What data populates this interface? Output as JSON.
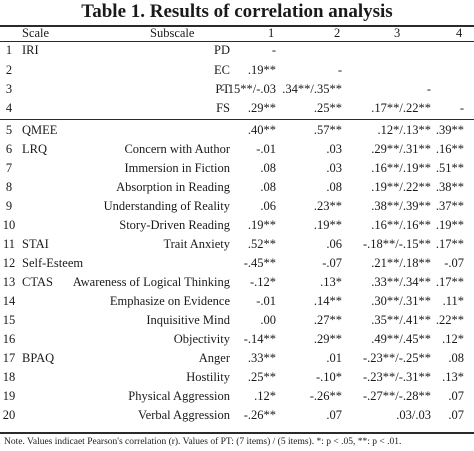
{
  "title": "Table 1. Results of correlation analysis",
  "headers": [
    "",
    "Scale",
    "Subscale",
    "1",
    "2",
    "3",
    "4"
  ],
  "rows": [
    [
      "1",
      "IRI",
      "PD",
      "-",
      "",
      "",
      ""
    ],
    [
      "2",
      "",
      "EC",
      ".19**",
      "-",
      "",
      ""
    ],
    [
      "3",
      "",
      "PT",
      "-.15**/-.03",
      ".34**/.35**",
      "-",
      ""
    ],
    [
      "4",
      "",
      "FS",
      ".29**",
      ".25**",
      ".17**/.22**",
      "-"
    ],
    [
      "5",
      "QMEE",
      "",
      ".40**",
      ".57**",
      ".12*/.13**",
      ".39**"
    ],
    [
      "6",
      "LRQ",
      "Concern with Author",
      "-.01",
      ".03",
      ".29**/.31**",
      ".16**"
    ],
    [
      "7",
      "",
      "Immersion in Fiction",
      ".08",
      ".03",
      ".16**/.19**",
      ".51**"
    ],
    [
      "8",
      "",
      "Absorption in Reading",
      ".08",
      ".08",
      ".19**/.22**",
      ".38**"
    ],
    [
      "9",
      "",
      "Understanding of Reality",
      ".06",
      ".23**",
      ".38**/.39**",
      ".37**"
    ],
    [
      "10",
      "",
      "Story-Driven Reading",
      ".19**",
      ".19**",
      ".16**/.16**",
      ".19**"
    ],
    [
      "11",
      "STAI",
      "Trait Anxiety",
      ".52**",
      ".06",
      "-.18**/-.15**",
      ".17**"
    ],
    [
      "12",
      "Self-Esteem",
      "",
      "-.45**",
      "-.07",
      ".21**/.18**",
      "-.07"
    ],
    [
      "13",
      "CTAS",
      "Awareness of Logical Thinking",
      "-.12*",
      ".13*",
      ".33**/.34**",
      ".17**"
    ],
    [
      "14",
      "",
      "Emphasize on Evidence",
      "-.01",
      ".14**",
      ".30**/.31**",
      ".11*"
    ],
    [
      "15",
      "",
      "Inquisitive Mind",
      ".00",
      ".27**",
      ".35**/.41**",
      ".22**"
    ],
    [
      "16",
      "",
      "Objectivity",
      "-.14**",
      ".29**",
      ".49**/.45**",
      ".12*"
    ],
    [
      "17",
      "BPAQ",
      "Anger",
      ".33**",
      ".01",
      "-.23**/-.25**",
      ".08"
    ],
    [
      "18",
      "",
      "Hostility",
      ".25**",
      "-.10*",
      "-.23**/-.31**",
      ".13*"
    ],
    [
      "19",
      "",
      "Physical Aggression",
      ".12*",
      "-.26**",
      "-.27**/-.28**",
      ".07"
    ],
    [
      "20",
      "",
      "Verbal Aggression",
      "-.26**",
      ".07",
      ".03/.03",
      ".07"
    ]
  ],
  "note": "Note. Values indicaet Pearson's correlation (r). Values of PT: (7 items) / (5 items). *: p < .05, **: p < .01."
}
